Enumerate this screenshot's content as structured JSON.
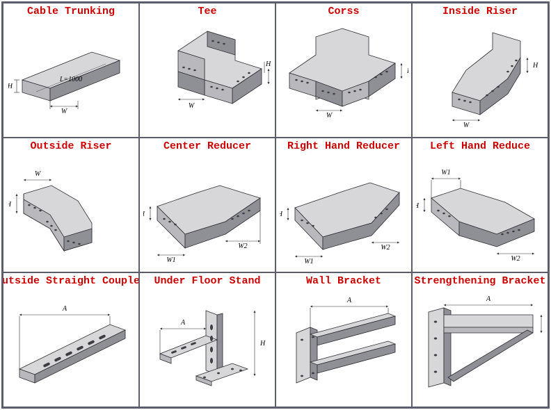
{
  "title_color": "#cc0000",
  "metal_light": "#d7d7d9",
  "metal_mid": "#b9b9bd",
  "metal_dark": "#8f8f96",
  "stroke": "#2b2b33",
  "hole": "#3d3d44",
  "border": "#5b5d6c",
  "items": [
    {
      "id": "cable-trunking",
      "label": "Cable Trunking",
      "shape": "trunking"
    },
    {
      "id": "tee",
      "label": "Tee",
      "shape": "tee"
    },
    {
      "id": "corss",
      "label": "Corss",
      "shape": "cross"
    },
    {
      "id": "inside-riser",
      "label": "Inside Riser",
      "shape": "inside-riser"
    },
    {
      "id": "outside-riser",
      "label": "Outside Riser",
      "shape": "outside-riser"
    },
    {
      "id": "center-reducer",
      "label": "Center Reducer",
      "shape": "center-reducer"
    },
    {
      "id": "right-hand-reducer",
      "label": "Right Hand Reducer",
      "shape": "right-reducer"
    },
    {
      "id": "left-hand-reduce",
      "label": "Left Hand Reduce",
      "shape": "left-reducer"
    },
    {
      "id": "outside-straight-coupler",
      "label": "Outside Straight Coupler",
      "shape": "coupler"
    },
    {
      "id": "under-floor-stand",
      "label": "Under Floor Stand",
      "shape": "floor-stand"
    },
    {
      "id": "wall-bracket",
      "label": "Wall Bracket",
      "shape": "wall-bracket"
    },
    {
      "id": "strengthening-bracket",
      "label": "Strengthening Bracket",
      "shape": "strength-bracket"
    }
  ]
}
